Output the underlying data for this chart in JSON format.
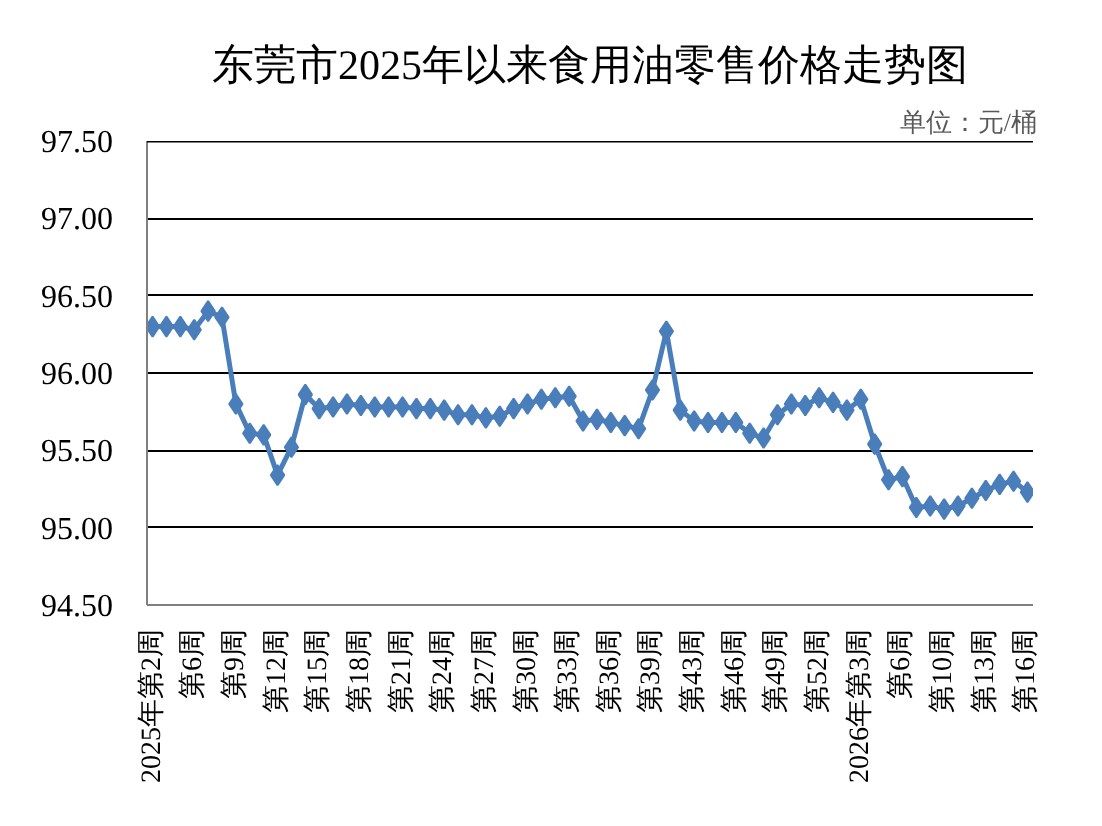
{
  "chart_data": {
    "type": "line",
    "title": "东莞市2025年以来食用油零售价格走势图",
    "annotations": [
      "单位：元/桶"
    ],
    "categories": [
      "2025年第2周",
      null,
      null,
      "第6周",
      null,
      null,
      "第9周",
      null,
      null,
      "第12周",
      null,
      null,
      "第15周",
      null,
      null,
      "第18周",
      null,
      null,
      "第21周",
      null,
      null,
      "第24周",
      null,
      null,
      "第27周",
      null,
      null,
      "第30周",
      null,
      null,
      "第33周",
      null,
      null,
      "第36周",
      null,
      null,
      "第39周",
      null,
      null,
      "第43周",
      null,
      null,
      "第46周",
      null,
      null,
      "第49周",
      null,
      null,
      "第52周",
      null,
      null,
      "2026年第3周",
      null,
      null,
      "第6周",
      null,
      null,
      "第10周",
      null,
      null,
      "第13周",
      null,
      null,
      "第16周"
    ],
    "series": [
      {
        "color": "#4a7ebb",
        "values": [
          96.3,
          96.3,
          96.3,
          96.28,
          96.4,
          96.36,
          95.8,
          95.61,
          95.6,
          95.34,
          95.52,
          95.86,
          95.77,
          95.78,
          95.8,
          95.79,
          95.78,
          95.78,
          95.78,
          95.77,
          95.77,
          95.76,
          95.73,
          95.73,
          95.71,
          95.72,
          95.77,
          95.8,
          95.83,
          95.84,
          95.85,
          95.69,
          95.7,
          95.68,
          95.66,
          95.64,
          95.89,
          96.27,
          95.76,
          95.69,
          95.68,
          95.68,
          95.68,
          95.61,
          95.58,
          95.73,
          95.8,
          95.79,
          95.84,
          95.81,
          95.76,
          95.83,
          95.54,
          95.31,
          95.33,
          95.13,
          95.14,
          95.12,
          95.14,
          95.19,
          95.24,
          95.28,
          95.3,
          95.23
        ]
      }
    ],
    "ylim": [
      94.5,
      97.5
    ],
    "yticks": [
      {
        "value": 94.5,
        "label": "94.50"
      },
      {
        "value": 95.0,
        "label": "95.00"
      },
      {
        "value": 95.5,
        "label": "95.50"
      },
      {
        "value": 96.0,
        "label": "96.00"
      },
      {
        "value": 96.5,
        "label": "96.50"
      },
      {
        "value": 97.0,
        "label": "97.00"
      },
      {
        "value": 97.5,
        "label": "97.50"
      }
    ],
    "grid": "y",
    "marker": "diamond",
    "line_style": "solid"
  }
}
